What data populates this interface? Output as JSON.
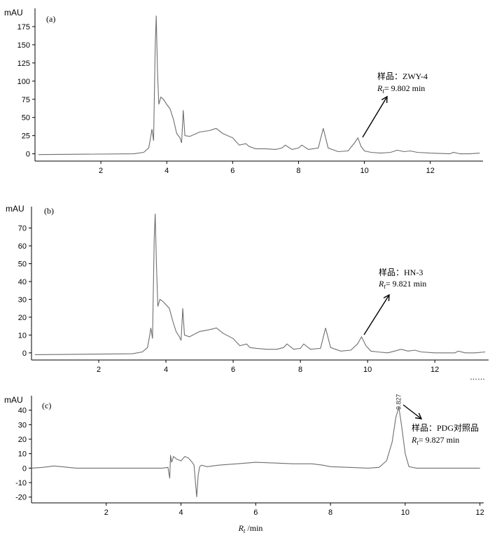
{
  "chart_data": [
    {
      "type": "line",
      "panel_label": "(a)",
      "ylabel": "mAU",
      "xlabel": "",
      "xlim": [
        0,
        13.6
      ],
      "ylim": [
        -10,
        200
      ],
      "xticks": [
        "2",
        "4",
        "6",
        "8",
        "10",
        "12"
      ],
      "yticks": [
        "0",
        "25",
        "50",
        "75",
        "100",
        "125",
        "150",
        "175"
      ],
      "annotation": {
        "sample_line": "样品：ZWY-4",
        "rt_symbol": "R",
        "rt_sub": "t",
        "rt_value": "= 9.802 min",
        "peak_x": 9.802
      },
      "series": [
        {
          "x": [
            0.1,
            3.0,
            3.3,
            3.45,
            3.5,
            3.55,
            3.6,
            3.65,
            3.68,
            3.72,
            3.76,
            3.82,
            3.9,
            4.0,
            4.1,
            4.2,
            4.3,
            4.4,
            4.45,
            4.5,
            4.55,
            4.7,
            5.0,
            5.3,
            5.5,
            5.7,
            6.0,
            6.2,
            6.4,
            6.5,
            6.7,
            7.0,
            7.3,
            7.5,
            7.6,
            7.8,
            8.0,
            8.1,
            8.3,
            8.6,
            8.75,
            8.9,
            9.2,
            9.5,
            9.7,
            9.8,
            9.9,
            10.0,
            10.2,
            10.5,
            10.8,
            11.0,
            11.2,
            11.4,
            11.6,
            12.0,
            12.6,
            12.7,
            12.9,
            13.2,
            13.5
          ],
          "y": [
            -1,
            0,
            2,
            8,
            20,
            34,
            18,
            150,
            190,
            110,
            68,
            78,
            75,
            68,
            62,
            48,
            28,
            22,
            15,
            60,
            25,
            24,
            30,
            32,
            35,
            28,
            22,
            12,
            14,
            10,
            7,
            7,
            6,
            8,
            12,
            6,
            8,
            12,
            6,
            8,
            35,
            8,
            3,
            4,
            15,
            22,
            10,
            4,
            2,
            1,
            2,
            5,
            3,
            4,
            2,
            1,
            0,
            2,
            0,
            0,
            1
          ]
        }
      ]
    },
    {
      "type": "line",
      "panel_label": "(b)",
      "ylabel": "mAU",
      "xlabel": "",
      "xlim": [
        0,
        13.6
      ],
      "ylim": [
        -4,
        82
      ],
      "xticks": [
        "2",
        "4",
        "6",
        "8",
        "10",
        "12"
      ],
      "yticks": [
        "0",
        "10",
        "20",
        "30",
        "40",
        "50",
        "60",
        "70"
      ],
      "continuation": "……",
      "annotation": {
        "sample_line": "样品：HN-3",
        "rt_symbol": "R",
        "rt_sub": "t",
        "rt_value": "= 9.821 min",
        "peak_x": 9.821
      },
      "series": [
        {
          "x": [
            0.1,
            3.0,
            3.3,
            3.45,
            3.5,
            3.55,
            3.6,
            3.65,
            3.68,
            3.72,
            3.76,
            3.82,
            3.9,
            4.0,
            4.1,
            4.2,
            4.3,
            4.4,
            4.45,
            4.5,
            4.55,
            4.7,
            5.0,
            5.3,
            5.5,
            5.7,
            6.0,
            6.2,
            6.4,
            6.5,
            6.7,
            7.0,
            7.3,
            7.5,
            7.6,
            7.8,
            8.0,
            8.1,
            8.3,
            8.6,
            8.75,
            8.9,
            9.2,
            9.5,
            9.7,
            9.82,
            9.95,
            10.1,
            10.3,
            10.6,
            10.8,
            11.0,
            11.2,
            11.4,
            11.6,
            12.0,
            12.6,
            12.7,
            12.9,
            13.2,
            13.5
          ],
          "y": [
            -1,
            -0.5,
            0.5,
            3,
            8,
            14,
            8,
            64,
            78,
            48,
            26,
            30,
            29,
            27,
            25,
            18,
            12,
            9,
            7,
            25,
            10,
            9,
            12,
            13,
            14,
            11,
            8,
            4,
            5,
            3,
            2.5,
            2,
            2,
            3,
            5,
            2,
            2.5,
            5,
            2,
            2.5,
            14,
            3,
            1,
            1.5,
            5,
            9,
            4,
            1,
            0.5,
            0,
            1,
            2,
            1,
            1.5,
            0.5,
            0,
            0,
            1,
            0,
            0,
            0.5
          ]
        }
      ]
    },
    {
      "type": "line",
      "panel_label": "(c)",
      "ylabel": "mAU",
      "xlabel_symbol": "R",
      "xlabel_sub": "t",
      "xlabel_rest": " /min",
      "xlim": [
        0,
        12.1
      ],
      "ylim": [
        -24,
        50
      ],
      "xticks": [
        "2",
        "4",
        "6",
        "8",
        "10",
        "12"
      ],
      "yticks": [
        "-20",
        "-10",
        "0",
        "10",
        "20",
        "30",
        "40"
      ],
      "peak_label": "9.827",
      "annotation": {
        "sample_line": "样品：PDG对照品",
        "rt_symbol": "R",
        "rt_sub": "t",
        "rt_value": "= 9.827 min",
        "peak_x": 9.827
      },
      "series": [
        {
          "x": [
            0.0,
            0.3,
            0.6,
            0.8,
            1.2,
            2.0,
            3.0,
            3.5,
            3.65,
            3.7,
            3.72,
            3.75,
            3.8,
            3.9,
            4.0,
            4.1,
            4.2,
            4.3,
            4.35,
            4.42,
            4.46,
            4.5,
            4.55,
            4.7,
            5.0,
            5.5,
            6.0,
            6.5,
            7.0,
            7.5,
            7.8,
            8.0,
            8.5,
            9.0,
            9.3,
            9.5,
            9.65,
            9.75,
            9.83,
            9.9,
            10.0,
            10.1,
            10.3,
            10.6,
            11.0,
            12.0
          ],
          "y": [
            0,
            0.5,
            1.5,
            1,
            0,
            0,
            0,
            0,
            0.5,
            -7,
            9,
            4,
            8,
            6,
            5,
            8,
            7,
            4,
            2,
            -20,
            -5,
            1,
            2,
            1,
            2,
            3,
            4,
            3.5,
            3,
            3,
            2,
            1,
            0.5,
            0,
            0.5,
            5,
            18,
            35,
            42,
            30,
            10,
            1,
            0,
            0,
            0,
            0
          ]
        }
      ]
    }
  ]
}
